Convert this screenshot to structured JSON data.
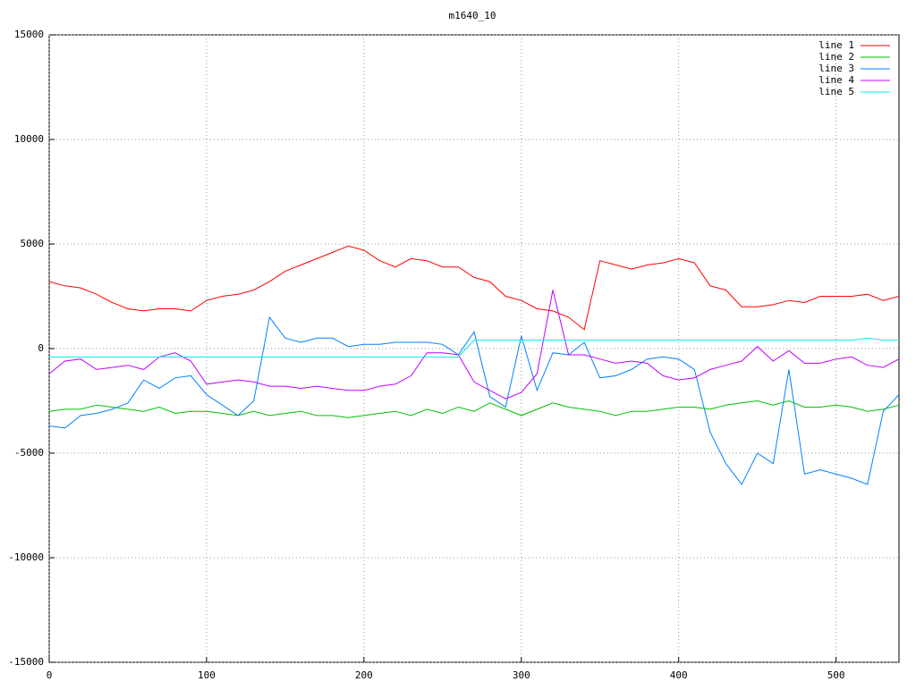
{
  "chart_data": {
    "type": "line",
    "title": "m1640_10",
    "x": [
      0,
      10,
      20,
      30,
      40,
      50,
      60,
      70,
      80,
      90,
      100,
      110,
      120,
      130,
      140,
      150,
      160,
      170,
      180,
      190,
      200,
      210,
      220,
      230,
      240,
      250,
      260,
      270,
      280,
      290,
      300,
      310,
      320,
      330,
      340,
      350,
      360,
      370,
      380,
      390,
      400,
      410,
      420,
      430,
      440,
      450,
      460,
      470,
      480,
      490,
      500,
      510,
      520,
      530,
      540
    ],
    "xlim": [
      0,
      540
    ],
    "xticks": [
      0,
      100,
      200,
      300,
      400,
      500
    ],
    "ylim": [
      -15000,
      15000
    ],
    "yticks": [
      -15000,
      -10000,
      -5000,
      0,
      5000,
      10000,
      15000
    ],
    "grid": true,
    "legend": "top-right",
    "series": [
      {
        "name": "line 1",
        "color": "#ff0000",
        "values": [
          3200,
          3000,
          2900,
          2600,
          2200,
          1900,
          1800,
          1900,
          1900,
          1800,
          2300,
          2500,
          2600,
          2800,
          3200,
          3700,
          4000,
          4300,
          4600,
          4900,
          4700,
          4200,
          3900,
          4300,
          4200,
          3900,
          3900,
          3400,
          3200,
          2500,
          2300,
          1900,
          1800,
          1500,
          900,
          4200,
          4000,
          3800,
          4000,
          4100,
          4300,
          4100,
          3000,
          2800,
          2000,
          2000,
          2100,
          2300,
          2200,
          2500,
          2500,
          2500,
          2600,
          2300,
          2500
        ]
      },
      {
        "name": "line 2",
        "color": "#00c000",
        "values": [
          -3000,
          -2900,
          -2900,
          -2700,
          -2800,
          -2900,
          -3000,
          -2800,
          -3100,
          -3000,
          -3000,
          -3100,
          -3200,
          -3000,
          -3200,
          -3100,
          -3000,
          -3200,
          -3200,
          -3300,
          -3200,
          -3100,
          -3000,
          -3200,
          -2900,
          -3100,
          -2800,
          -3000,
          -2600,
          -2900,
          -3200,
          -2900,
          -2600,
          -2800,
          -2900,
          -3000,
          -3200,
          -3000,
          -3000,
          -2900,
          -2800,
          -2800,
          -2900,
          -2700,
          -2600,
          -2500,
          -2700,
          -2500,
          -2800,
          -2800,
          -2700,
          -2800,
          -3000,
          -2900,
          -2700
        ]
      },
      {
        "name": "line 3",
        "color": "#0080ff",
        "values": [
          -3700,
          -3800,
          -3200,
          -3100,
          -2900,
          -2600,
          -1500,
          -1900,
          -1400,
          -1300,
          -2200,
          -2700,
          -3200,
          -2500,
          1500,
          500,
          300,
          500,
          500,
          100,
          200,
          200,
          300,
          300,
          300,
          200,
          -300,
          800,
          -2300,
          -2800,
          600,
          -2000,
          -200,
          -300,
          300,
          -1400,
          -1300,
          -1000,
          -500,
          -400,
          -500,
          -1000,
          -4000,
          -5500,
          -6500,
          -5000,
          -5500,
          -1000,
          -6000,
          -5800,
          -6000,
          -6200,
          -6500,
          -3000,
          -2200
        ]
      },
      {
        "name": "line 4",
        "color": "#c000ff",
        "values": [
          -1200,
          -600,
          -500,
          -1000,
          -900,
          -800,
          -1000,
          -400,
          -200,
          -600,
          -1700,
          -1600,
          -1500,
          -1600,
          -1800,
          -1800,
          -1900,
          -1800,
          -1900,
          -2000,
          -2000,
          -1800,
          -1700,
          -1300,
          -200,
          -200,
          -300,
          -1600,
          -2000,
          -2400,
          -2100,
          -1200,
          2800,
          -300,
          -300,
          -500,
          -700,
          -600,
          -700,
          -1300,
          -1500,
          -1400,
          -1000,
          -800,
          -600,
          100,
          -600,
          -100,
          -700,
          -700,
          -500,
          -400,
          -800,
          -900,
          -500
        ]
      },
      {
        "name": "line 5",
        "color": "#00eeee",
        "values": [
          -400,
          -400,
          -400,
          -400,
          -400,
          -400,
          -400,
          -400,
          -400,
          -400,
          -400,
          -400,
          -400,
          -400,
          -400,
          -400,
          -400,
          -400,
          -400,
          -400,
          -400,
          -400,
          -400,
          -400,
          -400,
          -400,
          -400,
          400,
          400,
          400,
          400,
          400,
          400,
          400,
          400,
          400,
          400,
          400,
          400,
          400,
          400,
          400,
          400,
          400,
          400,
          400,
          400,
          400,
          400,
          400,
          400,
          400,
          500,
          400,
          400
        ]
      }
    ]
  }
}
